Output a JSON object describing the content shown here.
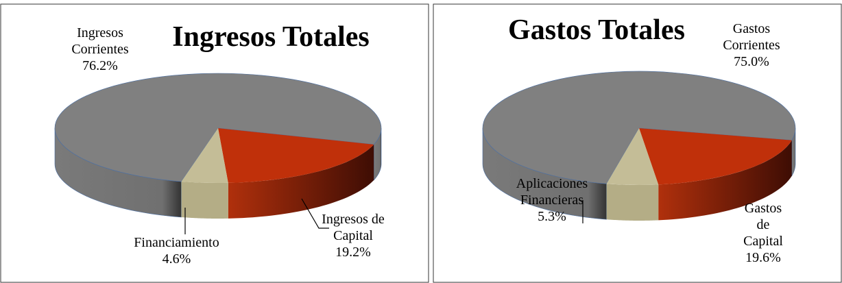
{
  "chart_data": [
    {
      "type": "pie",
      "title": "Ingresos Totales",
      "categories": [
        "Ingresos Corrientes",
        "Ingresos de Capital",
        "Financiamiento"
      ],
      "values": [
        76.2,
        19.2,
        4.6
      ],
      "value_labels": [
        "76.2%",
        "19.2%",
        "4.6%"
      ],
      "colors": [
        "#808080",
        "#c0300a",
        "#c4bd97"
      ]
    },
    {
      "type": "pie",
      "title": "Gastos Totales",
      "categories": [
        "Gastos Corrientes",
        "Gastos de Capital",
        "Aplicaciones Financieras"
      ],
      "values": [
        75.0,
        19.6,
        5.3
      ],
      "value_labels": [
        "75.0%",
        "19.6%",
        "5.3%"
      ],
      "colors": [
        "#808080",
        "#c0300a",
        "#c4bd97"
      ]
    }
  ]
}
